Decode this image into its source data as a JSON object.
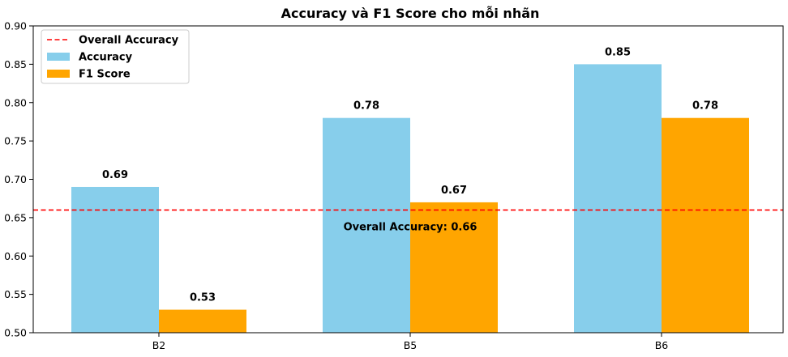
{
  "chart_data": {
    "type": "bar",
    "title": "Accuracy và F1 Score cho mỗi nhãn",
    "categories": [
      "B2",
      "B5",
      "B6"
    ],
    "series": [
      {
        "name": "Accuracy",
        "values": [
          0.69,
          0.78,
          0.85
        ],
        "color": "#87ceeb",
        "labels": [
          "0.69",
          "0.78",
          "0.85"
        ]
      },
      {
        "name": "F1 Score",
        "values": [
          0.53,
          0.67,
          0.78
        ],
        "color": "#ffa500",
        "labels": [
          "0.53",
          "0.67",
          "0.78"
        ]
      }
    ],
    "reference_line": {
      "name": "Overall Accuracy",
      "value": 0.66,
      "color": "#ff0000",
      "style": "dashed",
      "annotation": "Overall Accuracy: 0.66"
    },
    "ylim": [
      0.5,
      0.9
    ],
    "yticks": [
      "0.50",
      "0.55",
      "0.60",
      "0.65",
      "0.70",
      "0.75",
      "0.80",
      "0.85",
      "0.90"
    ],
    "ytick_values": [
      0.5,
      0.55,
      0.6,
      0.65,
      0.7,
      0.75,
      0.8,
      0.85,
      0.9
    ],
    "xlabel": "",
    "ylabel": "",
    "grid": false,
    "legend_placement": "top-left"
  }
}
